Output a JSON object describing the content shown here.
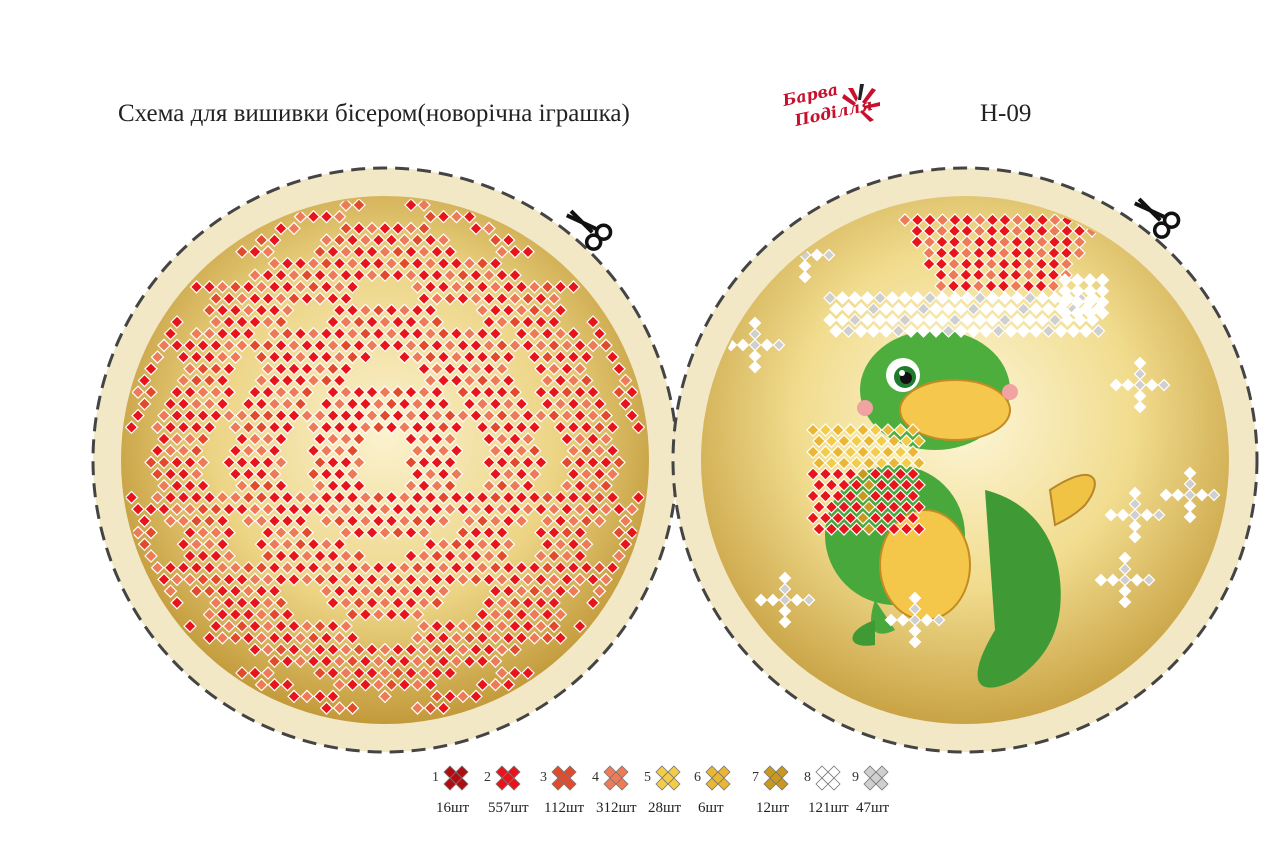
{
  "header": {
    "title": "Схема для вишивки бісером(новорічна іграшка)",
    "code": "Н-09",
    "logo_text_line1": "Барва",
    "logo_text_line2": "Поділля"
  },
  "palette": {
    "gold_light": "#f7ecc0",
    "gold_mid": "#e8cf7a",
    "gold_dark": "#c9a43e",
    "frame": "#efe3bd"
  },
  "left_ornament": {
    "name": "pattern-ornament",
    "icon": "scissors-icon"
  },
  "right_ornament": {
    "name": "dragon-ornament",
    "icon": "scissors-icon"
  },
  "legend": [
    {
      "num": "1",
      "count": "16шт",
      "color": "#b00d12"
    },
    {
      "num": "2",
      "count": "557шт",
      "color": "#e8141b"
    },
    {
      "num": "3",
      "count": "112шт",
      "color": "#e24a2c"
    },
    {
      "num": "4",
      "count": "312шт",
      "color": "#ee7b58"
    },
    {
      "num": "5",
      "count": "28шт",
      "color": "#f3cc49"
    },
    {
      "num": "6",
      "count": "6шт",
      "color": "#e9b733"
    },
    {
      "num": "7",
      "count": "12шт",
      "color": "#c9981f"
    },
    {
      "num": "8",
      "count": "121шт",
      "color": "#ffffff"
    },
    {
      "num": "9",
      "count": "47шт",
      "color": "#cfcfcf"
    }
  ]
}
